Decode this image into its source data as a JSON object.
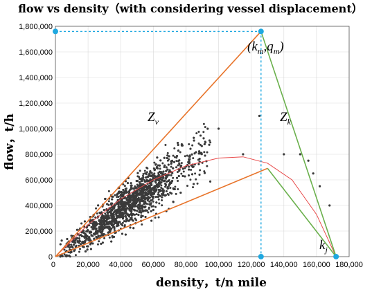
{
  "chart_data": {
    "type": "scatter",
    "title": "flow vs density（with considering vessel displacement）",
    "xlabel": "density，t/n mile",
    "ylabel": "flow，t/h",
    "xlim": [
      0,
      180000
    ],
    "ylim": [
      0,
      1800000
    ],
    "xticks": [
      0,
      20000,
      40000,
      60000,
      80000,
      100000,
      120000,
      140000,
      160000,
      180000
    ],
    "xtick_labels": [
      "0",
      "20,000",
      "40,000",
      "60,000",
      "80,000",
      "100,000",
      "120,000",
      "140,000",
      "160,000",
      "180,000"
    ],
    "yticks": [
      0,
      200000,
      400000,
      600000,
      800000,
      1000000,
      1200000,
      1400000,
      1600000,
      1800000
    ],
    "ytick_labels": [
      "0",
      "200,000",
      "400,000",
      "600,000",
      "800,000",
      "1,000,000",
      "1,200,000",
      "1,400,000",
      "1,600,000",
      "1,800,000"
    ],
    "grid": true,
    "colors": {
      "points": "#3a3a3a",
      "upper_envelope": "#e8742a",
      "right_envelope": "#6ab04c",
      "fit_curve": "#e84a4a",
      "guides": "#1fa8e0"
    },
    "scatter_points": {
      "description_count": 3000,
      "core_trend": [
        [
          5000,
          70000
        ],
        [
          20000,
          250000
        ],
        [
          40000,
          400000
        ],
        [
          60000,
          550000
        ],
        [
          80000,
          620000
        ]
      ],
      "outliers": [
        [
          100000,
          1000000
        ],
        [
          115000,
          800000
        ],
        [
          125000,
          1100000
        ],
        [
          140000,
          800000
        ],
        [
          150000,
          800000
        ],
        [
          155000,
          750000
        ],
        [
          158000,
          650000
        ],
        [
          162000,
          550000
        ],
        [
          168000,
          400000
        ]
      ]
    },
    "upper_envelope": {
      "label": "Z",
      "subscript": "v",
      "x": [
        0,
        126000
      ],
      "y": [
        0,
        1760000
      ]
    },
    "lower_envelope": {
      "x": [
        0,
        130000,
        172000
      ],
      "y": [
        0,
        690000,
        0
      ]
    },
    "right_envelope": {
      "label": "Z",
      "subscript": "k",
      "x": [
        126000,
        172000
      ],
      "y": [
        1760000,
        0
      ]
    },
    "fit_curve": {
      "x": [
        0,
        20000,
        40000,
        60000,
        80000,
        100000,
        115000,
        130000,
        145000,
        160000,
        172000
      ],
      "y": [
        0,
        250000,
        450000,
        600000,
        710000,
        770000,
        780000,
        730000,
        600000,
        330000,
        0
      ]
    },
    "capacity_point": {
      "label_open": "(",
      "label_k": "k",
      "label_k_sub": "m",
      "label_sep": ",",
      "label_q": "q",
      "label_q_sub": "m",
      "label_close": ")",
      "x": 126000,
      "y": 1760000
    },
    "jam_point": {
      "label": "k",
      "subscript": "j",
      "x": 172000,
      "y": 0
    }
  }
}
